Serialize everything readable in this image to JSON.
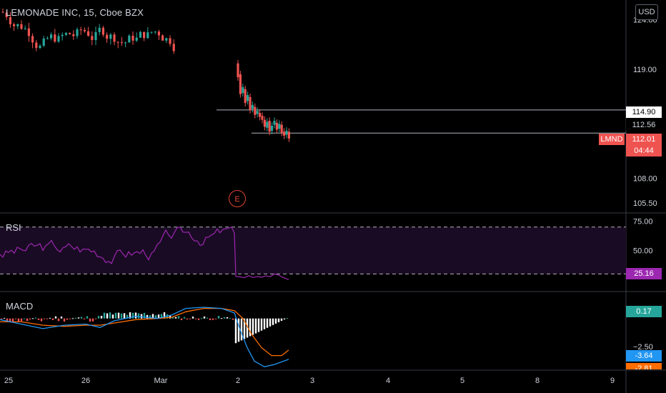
{
  "header": {
    "title": "LEMONADE INC, 15, Cboe BZX"
  },
  "currency_button": {
    "label": "USD"
  },
  "earnings_marker": {
    "label": "E"
  },
  "colors": {
    "up": "#26a69a",
    "down": "#ef5350",
    "rsi_line": "#9c27b0",
    "rsi_band": "#1a0b24",
    "macd_line": "#2196f3",
    "signal_line": "#ff6d00",
    "price_tag": "#ef5350",
    "earnings": "#e04434"
  },
  "price_tags": {
    "current": {
      "symbol": "LMND",
      "price": "112.01",
      "countdown": "04:44"
    },
    "level_1": "114.90",
    "level_2": "112.56"
  },
  "rsi_tags": {
    "value": "25.16"
  },
  "macd_tags": {
    "hist": "0.17",
    "macd": "-3.64",
    "signal": "-2.81"
  },
  "chart_data": [
    {
      "type": "candlestick",
      "title": "LEMONADE INC, 15, Cboe BZX",
      "x_ticks": [
        "25",
        "26",
        "Mar",
        "2",
        "3",
        "4",
        "5",
        "8",
        "9"
      ],
      "y_ticks": [
        124.0,
        119.0,
        114.9,
        112.56,
        112.01,
        108.0,
        105.5
      ],
      "y_tick_labels": [
        "124.00",
        "119.00",
        "114.90",
        "112.56",
        "112.01",
        "108.00",
        "105.50"
      ],
      "horizontal_levels": [
        114.9,
        112.56
      ],
      "last_price": 112.01,
      "ylim": [
        104.5,
        126.0
      ],
      "grid": false,
      "note_markers": [
        {
          "label": "E",
          "x": "2"
        }
      ]
    },
    {
      "type": "line",
      "title": "RSI",
      "y_ticks": [
        75.0,
        50.0
      ],
      "y_tick_labels": [
        "75.00",
        "50.00"
      ],
      "bands": [
        70,
        30
      ],
      "ylim": [
        15,
        82
      ],
      "last_value": 25.16
    },
    {
      "type": "line",
      "title": "MACD",
      "y_ticks": [
        -2.5
      ],
      "y_tick_labels": [
        "−2.50"
      ],
      "ylim": [
        -4.6,
        2.4
      ],
      "series": [
        {
          "last": -3.64
        },
        {
          "last": -2.81
        },
        {
          "last": 0.17
        }
      ]
    }
  ]
}
